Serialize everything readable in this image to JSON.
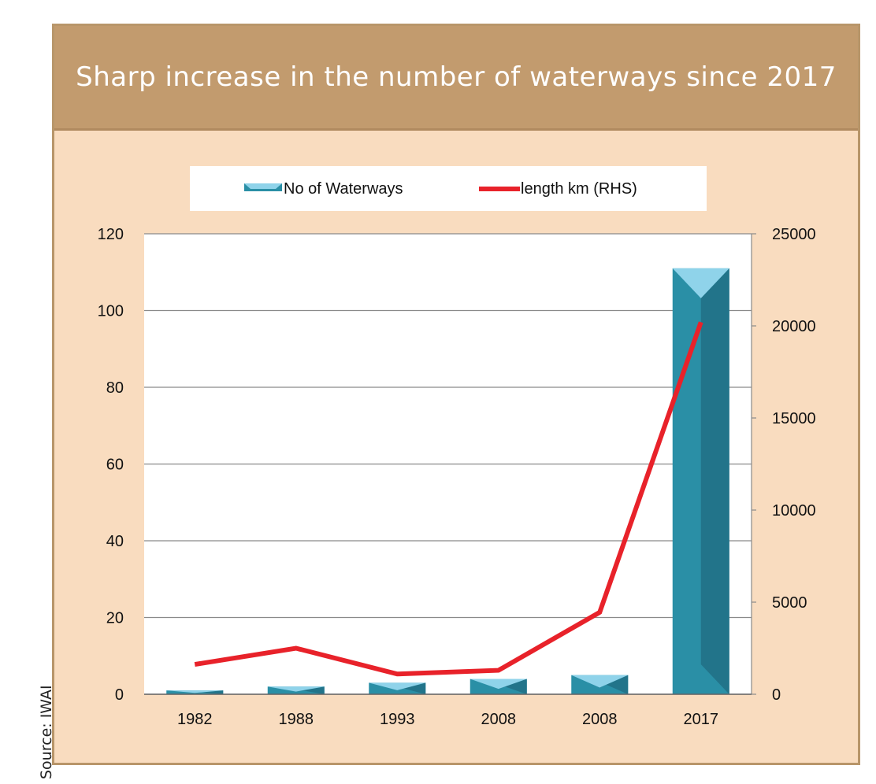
{
  "source": "Source: IWAI",
  "chart_data": {
    "type": "bar",
    "title": "Sharp increase in the number of waterways since 2017",
    "categories": [
      "1982",
      "1988",
      "1993",
      "2008",
      "2008",
      "2017"
    ],
    "series": [
      {
        "name": "No of Waterways",
        "kind": "bar",
        "axis": "left",
        "values": [
          1,
          2,
          3,
          4,
          5,
          111
        ]
      },
      {
        "name": "length km (RHS)",
        "kind": "line",
        "axis": "right",
        "values": [
          1620,
          2500,
          1100,
          1300,
          4450,
          20200
        ]
      }
    ],
    "y_left": {
      "min": 0,
      "max": 120,
      "ticks": [
        0,
        20,
        40,
        60,
        80,
        100,
        120
      ]
    },
    "y_right": {
      "min": 0,
      "max": 25000,
      "ticks": [
        0,
        5000,
        10000,
        15000,
        20000,
        25000
      ]
    },
    "legend": {
      "position": "top"
    },
    "colors": {
      "bar_front": "#2a8fa6",
      "bar_side": "#22748a",
      "bar_top": "#8fd3ea",
      "line": "#e8222a",
      "grid": "#8a8a8a"
    }
  }
}
